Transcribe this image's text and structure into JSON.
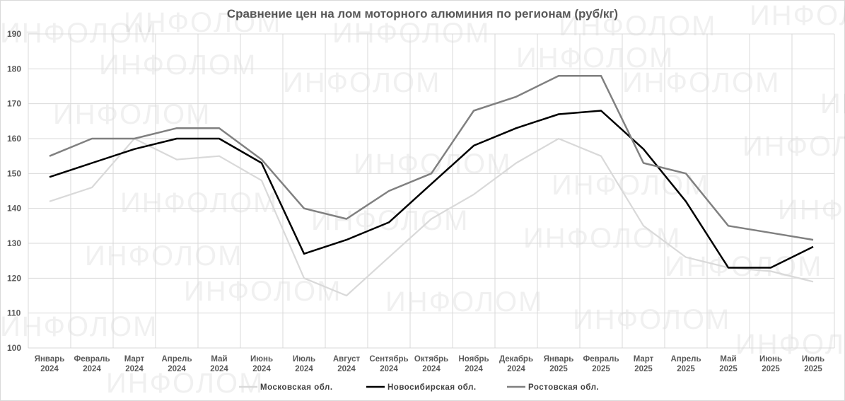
{
  "watermark": "ИНФОЛОМ",
  "chart_data": {
    "type": "line",
    "title": "Сравнение цен на лом моторного алюминия по регионам (руб/кг)",
    "categories": [
      [
        "Январь",
        "2024"
      ],
      [
        "Февраль",
        "2024"
      ],
      [
        "Март",
        "2024"
      ],
      [
        "Апрель",
        "2024"
      ],
      [
        "Май",
        "2024"
      ],
      [
        "Июнь",
        "2024"
      ],
      [
        "Июль",
        "2024"
      ],
      [
        "Август",
        "2024"
      ],
      [
        "Сентябрь",
        "2024"
      ],
      [
        "Октябрь",
        "2024"
      ],
      [
        "Ноябрь",
        "2024"
      ],
      [
        "Декабрь",
        "2024"
      ],
      [
        "Январь",
        "2025"
      ],
      [
        "Февраль",
        "2025"
      ],
      [
        "Март",
        "2025"
      ],
      [
        "Апрель",
        "2025"
      ],
      [
        "Май",
        "2025"
      ],
      [
        "Июнь",
        "2025"
      ],
      [
        "Июль",
        "2025"
      ]
    ],
    "ylim": [
      100,
      190
    ],
    "yticks": [
      100,
      110,
      120,
      130,
      140,
      150,
      160,
      170,
      180,
      190
    ],
    "grid": true,
    "legend_position": "bottom",
    "series": [
      {
        "name": "Московская обл.",
        "color": "#d9d9d9",
        "values": [
          142,
          146,
          160,
          154,
          155,
          148,
          120,
          115,
          126,
          137,
          144,
          153,
          160,
          155,
          135,
          126,
          123,
          122,
          119
        ]
      },
      {
        "name": "Новосибирская обл.",
        "color": "#000000",
        "values": [
          149,
          153,
          157,
          160,
          160,
          153,
          127,
          131,
          136,
          147,
          158,
          163,
          167,
          168,
          157,
          142,
          123,
          123,
          129
        ]
      },
      {
        "name": "Ростовская обл.",
        "color": "#808080",
        "values": [
          155,
          160,
          160,
          163,
          163,
          154,
          140,
          137,
          145,
          150,
          168,
          172,
          178,
          178,
          153,
          150,
          135,
          133,
          131
        ]
      }
    ]
  }
}
